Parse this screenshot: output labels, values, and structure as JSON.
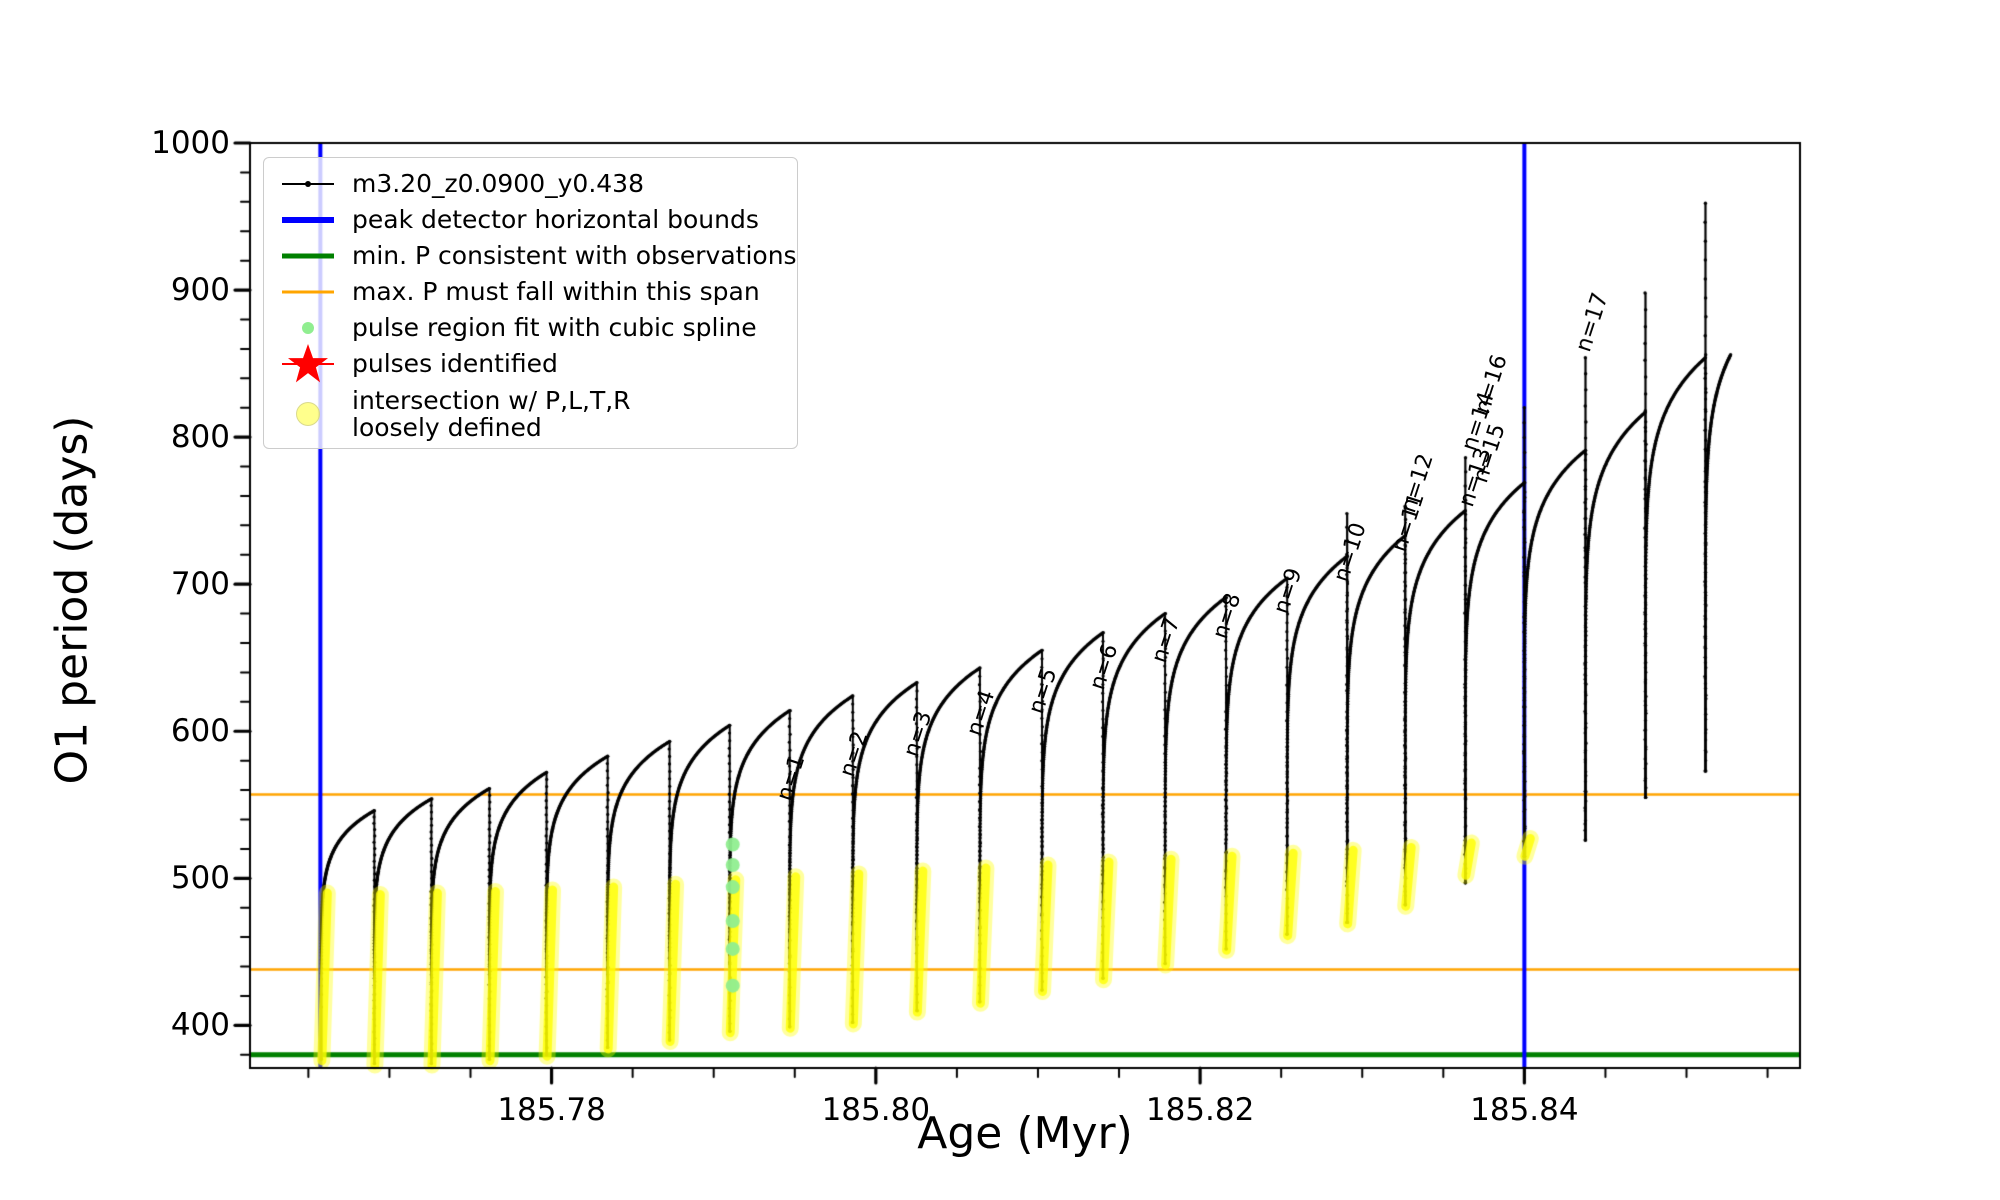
{
  "axes": {
    "xlabel": "Age (Myr)",
    "ylabel": "O1 period (days)",
    "xlim": [
      185.7614,
      185.857
    ],
    "ylim": [
      371,
      1000
    ],
    "x_major_ticks": [
      185.78,
      185.8,
      185.82,
      185.84
    ],
    "x_tick_labels": [
      "185.78",
      "185.80",
      "185.82",
      "185.84"
    ],
    "x_minor_step": 0.005,
    "y_major_ticks": [
      400,
      500,
      600,
      700,
      800,
      900,
      1000
    ],
    "y_tick_labels": [
      "400",
      "500",
      "600",
      "700",
      "800",
      "900",
      "1000"
    ],
    "y_minor_step": 20
  },
  "legend": {
    "items": [
      {
        "label": "m3.20_z0.0900_y0.438",
        "marker": "line-dot",
        "color": "#000000"
      },
      {
        "label": "peak detector horizontal bounds",
        "marker": "line",
        "color": "#0000ff"
      },
      {
        "label": "min. P consistent with observations",
        "marker": "line",
        "color": "#008000"
      },
      {
        "label": "max. P must fall within this span",
        "marker": "line",
        "color": "#ffa500"
      },
      {
        "label": "pulse region fit with cubic spline",
        "marker": "dot",
        "color": "#90ee90"
      },
      {
        "label": "pulses identified",
        "marker": "star",
        "color": "#ff0000"
      },
      {
        "label": "intersection w/ P,L,T,R\nloosely defined",
        "marker": "dot-large",
        "color": "#ffff00"
      }
    ]
  },
  "chart_data": {
    "type": "line",
    "series_name": "m3.20_z0.0900_y0.438",
    "curve_color": "#000000",
    "vlines": [
      {
        "x": 185.76574,
        "color": "#0000ff",
        "lw": 4
      },
      {
        "x": 185.84,
        "color": "#0000ff",
        "lw": 4
      }
    ],
    "hlines": [
      {
        "y": 380,
        "color": "#008000",
        "lw": 5
      },
      {
        "y": 557,
        "color": "#ffa500",
        "lw": 2.5
      },
      {
        "y": 438,
        "color": "#ffa500",
        "lw": 2.5
      }
    ],
    "cycles": [
      {
        "t": 185.7658,
        "min": 377,
        "peak": 546,
        "yellow": [
          376,
          490
        ]
      },
      {
        "t": 185.76907,
        "min": 374,
        "peak": 554,
        "yellow": [
          373,
          489
        ]
      },
      {
        "t": 185.77259,
        "min": 374,
        "peak": 561,
        "yellow": [
          373,
          490
        ]
      },
      {
        "t": 185.77617,
        "min": 377,
        "peak": 572,
        "yellow": [
          376,
          491
        ]
      },
      {
        "t": 185.77969,
        "min": 380,
        "peak": 583,
        "yellow": [
          379,
          492
        ]
      },
      {
        "t": 185.78346,
        "min": 385,
        "peak": 593,
        "yellow": [
          384,
          494
        ]
      },
      {
        "t": 185.78728,
        "min": 390,
        "peak": 604,
        "yellow": [
          389,
          496
        ]
      },
      {
        "t": 185.79099,
        "min": 396,
        "peak": 614,
        "yellow": [
          395,
          499
        ],
        "green": true
      },
      {
        "t": 185.79469,
        "min": 399,
        "peak": 624,
        "yellow": [
          398,
          501
        ]
      },
      {
        "t": 185.79858,
        "min": 402,
        "peak": 633,
        "yellow": [
          401,
          503
        ]
      },
      {
        "t": 185.80253,
        "min": 410,
        "peak": 643,
        "yellow": [
          409,
          505
        ]
      },
      {
        "t": 185.80642,
        "min": 416,
        "peak": 655,
        "yellow": [
          415,
          507
        ]
      },
      {
        "t": 185.81025,
        "min": 424,
        "peak": 667,
        "yellow": [
          423,
          509
        ]
      },
      {
        "t": 185.81401,
        "min": 432,
        "peak": 680,
        "yellow": [
          431,
          511
        ]
      },
      {
        "t": 185.81784,
        "min": 442,
        "peak": 691,
        "yellow": [
          441,
          513
        ]
      },
      {
        "t": 185.8216,
        "min": 452,
        "peak": 704,
        "yellow": [
          451,
          515
        ]
      },
      {
        "t": 185.82537,
        "min": 462,
        "peak": 719,
        "yellow": [
          461,
          517
        ]
      },
      {
        "t": 185.82907,
        "min": 470,
        "peak": 733,
        "spike": 748,
        "yellow": [
          469,
          519
        ]
      },
      {
        "t": 185.83265,
        "min": 482,
        "peak": 750,
        "spike": 753,
        "yellow": [
          481,
          521
        ]
      },
      {
        "t": 185.83636,
        "min": 497,
        "peak": 769,
        "spike": 786,
        "yellow": [
          502,
          524
        ]
      },
      {
        "t": 185.84,
        "min": 515,
        "peak": 791,
        "spike": 820,
        "yellow": [
          515,
          527
        ]
      },
      {
        "t": 185.84377,
        "min": 526,
        "peak": 817,
        "spike": 854
      },
      {
        "t": 185.84747,
        "min": 555,
        "peak": 854,
        "spike": 898
      },
      {
        "t": 185.85117,
        "min": 573,
        "peak": 856,
        "spike": 959
      }
    ],
    "data_end": {
      "t": 185.85272
    },
    "green_dots": {
      "age": 185.79105,
      "periods": [
        427,
        452,
        471,
        494,
        509,
        523
      ],
      "color": "#90ee90"
    },
    "yellow_color": "#ffff00",
    "annotations": [
      {
        "text": "n=1",
        "age": 185.79495,
        "period": 550
      },
      {
        "text": "n=2",
        "age": 185.79884,
        "period": 566
      },
      {
        "text": "n=3",
        "age": 185.80278,
        "period": 580
      },
      {
        "text": "n=4",
        "age": 185.80667,
        "period": 594
      },
      {
        "text": "n=5",
        "age": 185.8105,
        "period": 609
      },
      {
        "text": "n=6",
        "age": 185.81427,
        "period": 625
      },
      {
        "text": "n=7",
        "age": 185.81809,
        "period": 644
      },
      {
        "text": "n=8",
        "age": 185.82186,
        "period": 660
      },
      {
        "text": "n=9",
        "age": 185.82563,
        "period": 677
      },
      {
        "text": "n=10",
        "age": 185.82933,
        "period": 699
      },
      {
        "text": "n=11",
        "age": 185.8329,
        "period": 719
      },
      {
        "text": "n=12",
        "age": 185.83346,
        "period": 746
      },
      {
        "text": "n=13",
        "age": 185.83704,
        "period": 750
      },
      {
        "text": "n=14",
        "age": 185.83722,
        "period": 788
      },
      {
        "text": "n=15",
        "age": 185.8379,
        "period": 766
      },
      {
        "text": "n=16",
        "age": 185.83802,
        "period": 813
      },
      {
        "text": "n=17",
        "age": 185.84426,
        "period": 855
      }
    ]
  }
}
